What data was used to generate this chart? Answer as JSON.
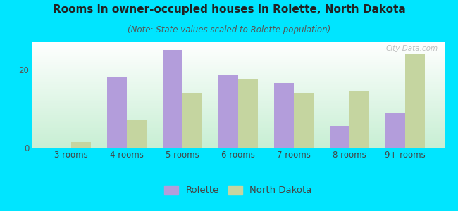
{
  "title": "Rooms in owner-occupied houses in Rolette, North Dakota",
  "subtitle": "(Note: State values scaled to Rolette population)",
  "categories": [
    "3 rooms",
    "4 rooms",
    "5 rooms",
    "6 rooms",
    "7 rooms",
    "8 rooms",
    "9+ rooms"
  ],
  "rolette_values": [
    0,
    18,
    25,
    18.5,
    16.5,
    5.5,
    9
  ],
  "nd_values": [
    1.5,
    7,
    14,
    17.5,
    14,
    14.5,
    24
  ],
  "rolette_color": "#b39ddb",
  "nd_color": "#c5d5a0",
  "background_color": "#00e5ff",
  "ylim": [
    0,
    27
  ],
  "yticks": [
    0,
    20
  ],
  "bar_width": 0.35,
  "title_fontsize": 11,
  "subtitle_fontsize": 8.5,
  "tick_fontsize": 8.5,
  "legend_fontsize": 9.5
}
